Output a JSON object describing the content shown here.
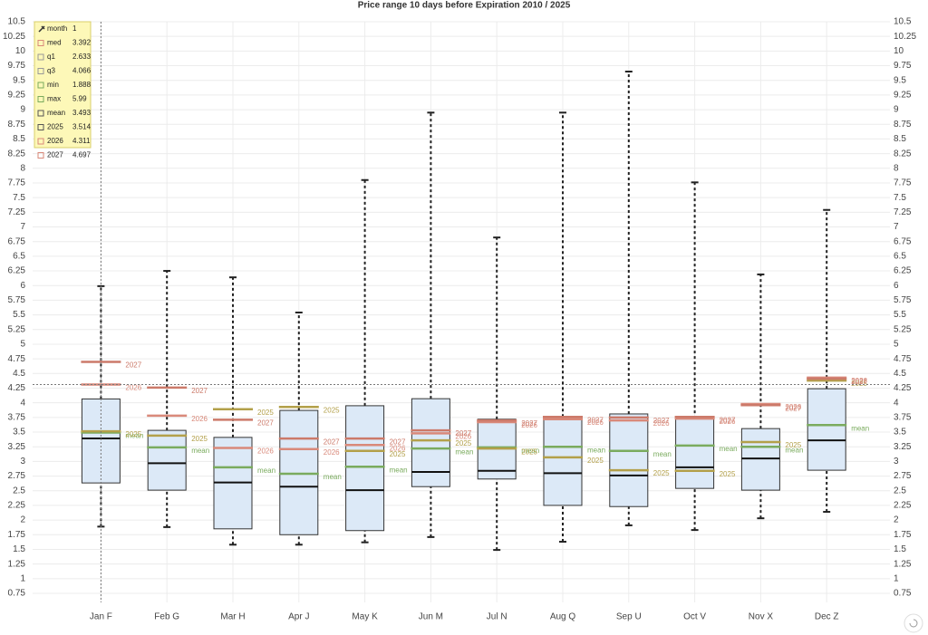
{
  "chart_data": {
    "type": "box",
    "title": "Price range 10 days before Expiration 2010 / 2025",
    "categories": [
      "Jan F",
      "Feb G",
      "Mar H",
      "Apr J",
      "May K",
      "Jun M",
      "Jul N",
      "Aug Q",
      "Sep U",
      "Oct V",
      "Nov X",
      "Dec Z"
    ],
    "boxes": {
      "min": [
        1.888,
        1.88,
        1.58,
        1.58,
        1.62,
        1.71,
        1.49,
        1.63,
        1.91,
        1.83,
        2.03,
        2.14
      ],
      "q1": [
        2.633,
        2.51,
        1.85,
        1.75,
        1.82,
        2.57,
        2.7,
        2.25,
        2.23,
        2.54,
        2.51,
        2.85
      ],
      "median": [
        3.392,
        2.97,
        2.64,
        2.57,
        2.51,
        2.82,
        2.84,
        2.8,
        2.76,
        2.9,
        3.05,
        3.36
      ],
      "q3": [
        4.066,
        3.53,
        3.41,
        3.87,
        3.95,
        4.07,
        3.72,
        3.76,
        3.81,
        3.73,
        3.56,
        4.24
      ],
      "max": [
        5.99,
        6.25,
        6.14,
        5.54,
        7.8,
        8.95,
        6.82,
        8.95,
        9.65,
        7.76,
        6.19,
        7.29
      ],
      "color": "#dce9f7",
      "edge": "#333333",
      "median_color": "#111111"
    },
    "overlays": [
      {
        "name": "mean",
        "color": "#7aab5e",
        "values": [
          3.493,
          3.24,
          2.9,
          2.79,
          2.91,
          3.22,
          3.24,
          3.25,
          3.18,
          3.27,
          3.25,
          3.62
        ]
      },
      {
        "name": "2025",
        "color": "#b3a04a",
        "values": [
          3.514,
          3.44,
          3.89,
          3.93,
          3.18,
          3.36,
          3.22,
          3.07,
          2.85,
          2.84,
          3.33,
          4.38
        ]
      },
      {
        "name": "2026",
        "color": "#d9897a",
        "values": [
          4.311,
          3.78,
          3.23,
          3.21,
          3.28,
          3.48,
          3.67,
          3.72,
          3.7,
          3.73,
          3.98,
          4.43
        ]
      },
      {
        "name": "2027",
        "color": "#cc7a6a",
        "values": [
          4.697,
          4.26,
          3.71,
          3.39,
          3.39,
          3.53,
          3.7,
          3.76,
          3.75,
          3.76,
          3.96,
          4.41
        ]
      }
    ],
    "ylim": [
      0.75,
      10.5
    ],
    "yticks": [
      0.75,
      1,
      1.25,
      1.5,
      1.75,
      2,
      2.25,
      2.5,
      2.75,
      3,
      3.25,
      3.5,
      3.75,
      4,
      4.25,
      4.5,
      4.75,
      5,
      5.25,
      5.5,
      5.75,
      6,
      6.25,
      6.5,
      6.75,
      7,
      7.25,
      7.5,
      7.75,
      8,
      8.25,
      8.5,
      8.75,
      9,
      9.25,
      9.5,
      9.75,
      10,
      10.25,
      10.5
    ],
    "grid": true,
    "tooltip": [
      {
        "label": "month",
        "value": 1
      },
      {
        "label": "med",
        "value": 3.392
      },
      {
        "label": "q1",
        "value": 2.633
      },
      {
        "label": "q3",
        "value": 4.066
      },
      {
        "label": "min",
        "value": 1.888
      },
      {
        "label": "max",
        "value": 5.99
      },
      {
        "label": "mean",
        "value": 3.493
      },
      {
        "label": "2025",
        "value": 3.514
      },
      {
        "label": "2026",
        "value": 4.311
      },
      {
        "label": "2027",
        "value": 4.697
      }
    ]
  }
}
